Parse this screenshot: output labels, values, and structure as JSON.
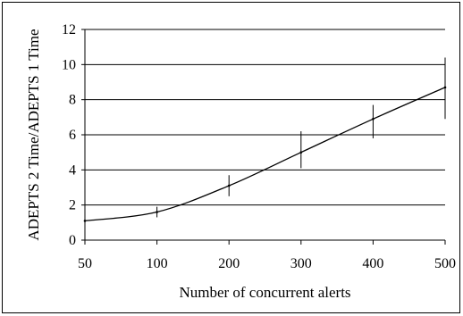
{
  "chart_data": {
    "type": "line",
    "title": "",
    "xlabel": "Number of concurrent alerts",
    "ylabel": "ADEPTS 2 Time/ADEPTS 1 Time",
    "categories": [
      "50",
      "100",
      "200",
      "300",
      "400",
      "500"
    ],
    "y_ticks": [
      "0",
      "2",
      "4",
      "6",
      "8",
      "10",
      "12"
    ],
    "ylim": [
      0,
      12
    ],
    "grid": true,
    "series": [
      {
        "values": [
          1.1,
          1.6,
          3.1,
          5.0,
          6.9,
          8.7
        ],
        "error_low": [
          1.05,
          1.3,
          2.5,
          4.1,
          5.8,
          6.9
        ],
        "error_high": [
          1.15,
          1.9,
          3.7,
          6.2,
          7.7,
          10.4
        ]
      }
    ],
    "colors": {
      "line": "#000000",
      "grid": "#000000",
      "background": "#ffffff"
    }
  }
}
